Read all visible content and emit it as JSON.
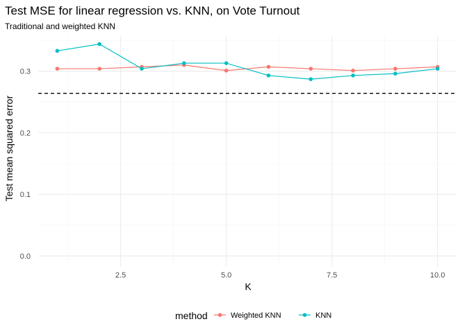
{
  "chart_data": {
    "type": "line",
    "title": "Test MSE for linear regression vs. KNN, on Vote Turnout",
    "subtitle": "Traditional and weighted KNN",
    "xlabel": "K",
    "ylabel": "Test mean squared error",
    "xlim": [
      0.55,
      10.45
    ],
    "ylim": [
      -0.017,
      0.357
    ],
    "x_ticks": [
      2.5,
      5.0,
      7.5,
      10.0
    ],
    "x_tick_labels": [
      "2.5",
      "5.0",
      "7.5",
      "10.0"
    ],
    "y_ticks": [
      0.0,
      0.1,
      0.2,
      0.3
    ],
    "y_tick_labels": [
      "0.0",
      "0.1",
      "0.2",
      "0.3"
    ],
    "grid": true,
    "legend": {
      "title": "method",
      "position": "bottom"
    },
    "x": [
      1,
      2,
      3,
      4,
      5,
      6,
      7,
      8,
      9,
      10
    ],
    "series": [
      {
        "name": "Weighted KNN",
        "color": "#F8766D",
        "values": [
          0.304,
          0.304,
          0.307,
          0.31,
          0.301,
          0.307,
          0.304,
          0.301,
          0.304,
          0.307
        ]
      },
      {
        "name": "KNN",
        "color": "#00BFC4",
        "values": [
          0.333,
          0.344,
          0.304,
          0.313,
          0.313,
          0.293,
          0.287,
          0.293,
          0.296,
          0.304
        ]
      }
    ],
    "reference_line": {
      "y": 0.264,
      "style": "dashed",
      "color": "#000000"
    }
  }
}
